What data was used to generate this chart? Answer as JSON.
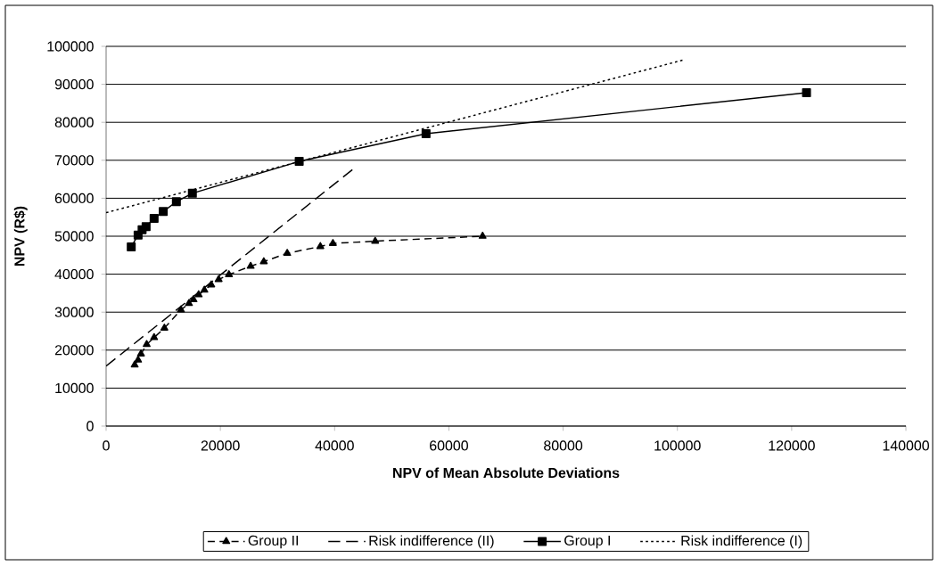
{
  "chart_data": {
    "type": "line",
    "xlabel": "NPV of Mean  Absolute Deviations",
    "ylabel": "NPV (R$)",
    "xlim": [
      0,
      140000
    ],
    "xticks": [
      0,
      20000,
      40000,
      60000,
      80000,
      100000,
      120000,
      140000
    ],
    "ylim": [
      0,
      100000
    ],
    "yticks": [
      0,
      10000,
      20000,
      30000,
      40000,
      50000,
      60000,
      70000,
      80000,
      90000,
      100000
    ],
    "grid": "y",
    "legend": "bottom",
    "series": [
      {
        "name": "Group II",
        "color": "#000000",
        "marker": "triangle",
        "line_style": "dashed",
        "x": [
          5000,
          5600,
          6100,
          7100,
          8400,
          10200,
          13100,
          14500,
          15300,
          16200,
          17200,
          18400,
          19700,
          21500,
          25300,
          27600,
          31700,
          37500,
          39700,
          47100,
          65900
        ],
        "values": [
          16100,
          17400,
          19000,
          21500,
          23300,
          25800,
          30600,
          32300,
          33300,
          34600,
          35800,
          37200,
          38600,
          39900,
          42100,
          43300,
          45500,
          47300,
          48100,
          48700,
          50000
        ]
      },
      {
        "name": "Risk indifference (II)",
        "color": "#000000",
        "marker": "none",
        "line_style": "longdashed",
        "x": [
          0,
          43500
        ],
        "values": [
          15800,
          68000
        ]
      },
      {
        "name": "Group I",
        "color": "#000000",
        "marker": "square",
        "line_style": "solid",
        "x": [
          4400,
          5600,
          6300,
          7000,
          8400,
          10000,
          12300,
          15100,
          33800,
          56000,
          122600
        ],
        "values": [
          47200,
          50300,
          51700,
          52500,
          54700,
          56500,
          59100,
          61300,
          69700,
          77000,
          87800
        ]
      },
      {
        "name": "Risk indifference (I)",
        "color": "#000000",
        "marker": "none",
        "line_style": "dotted",
        "x": [
          0,
          101000
        ],
        "values": [
          56200,
          96400
        ]
      }
    ]
  }
}
